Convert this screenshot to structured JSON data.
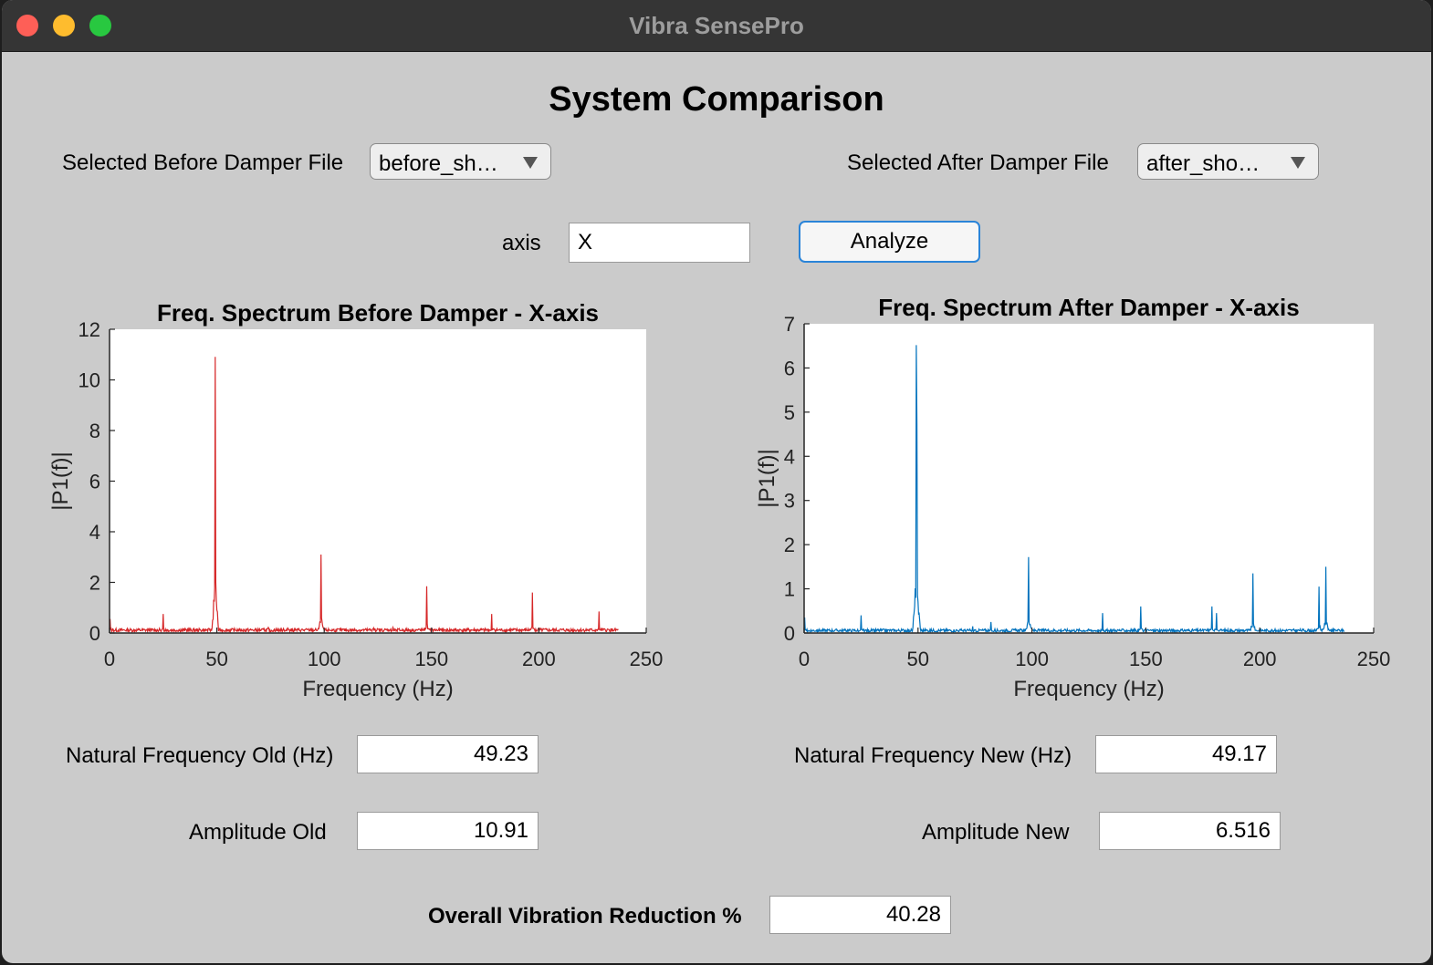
{
  "window": {
    "title": "Vibra SensePro"
  },
  "page": {
    "title": "System Comparison"
  },
  "before_file": {
    "label": "Selected Before Damper File",
    "value": "before_sh…"
  },
  "after_file": {
    "label": "Selected After Damper File",
    "value": "after_sho…"
  },
  "axis": {
    "label": "axis",
    "value": "X"
  },
  "analyze_button": "Analyze",
  "results": {
    "nat_freq_old_label": "Natural Frequency Old (Hz)",
    "nat_freq_old": "49.23",
    "nat_freq_new_label": "Natural Frequency New (Hz)",
    "nat_freq_new": "49.17",
    "amp_old_label": "Amplitude Old",
    "amp_old": "10.91",
    "amp_new_label": "Amplitude New",
    "amp_new": "6.516",
    "reduction_label": "Overall Vibration Reduction %",
    "reduction": "40.28"
  },
  "chart_data": [
    {
      "type": "line",
      "title": "Freq. Spectrum Before Damper - X-axis",
      "xlabel": "Frequency (Hz)",
      "ylabel": "|P1(f)|",
      "xlim": [
        0,
        250
      ],
      "ylim": [
        0,
        12
      ],
      "xticks": [
        0,
        50,
        100,
        150,
        200,
        250
      ],
      "yticks": [
        0,
        2,
        4,
        6,
        8,
        10,
        12
      ],
      "grid": false,
      "color": "#d62728",
      "data_max_x": 237,
      "baseline": 0.12,
      "peaks": [
        [
          0.3,
          0.55
        ],
        [
          25,
          0.75
        ],
        [
          49.2,
          10.91
        ],
        [
          74,
          0.22
        ],
        [
          83,
          0.2
        ],
        [
          98.5,
          3.1
        ],
        [
          123,
          0.2
        ],
        [
          132,
          0.22
        ],
        [
          147.8,
          1.85
        ],
        [
          178,
          0.75
        ],
        [
          197,
          1.6
        ],
        [
          228,
          0.85
        ]
      ]
    },
    {
      "type": "line",
      "title": "Freq. Spectrum After Damper - X-axis",
      "xlabel": "Frequency (Hz)",
      "ylabel": "|P1(f)|",
      "xlim": [
        0,
        250
      ],
      "ylim": [
        0,
        7
      ],
      "xticks": [
        0,
        50,
        100,
        150,
        200,
        250
      ],
      "yticks": [
        0,
        1,
        2,
        3,
        4,
        5,
        6,
        7
      ],
      "grid": false,
      "color": "#0072bd",
      "data_max_x": 237,
      "baseline": 0.06,
      "peaks": [
        [
          0.3,
          0.35
        ],
        [
          25,
          0.4
        ],
        [
          49.2,
          6.516
        ],
        [
          49.6,
          4.7
        ],
        [
          74,
          0.15
        ],
        [
          82,
          0.25
        ],
        [
          98.6,
          1.72
        ],
        [
          131,
          0.45
        ],
        [
          147.8,
          0.6
        ],
        [
          179,
          0.6
        ],
        [
          181,
          0.45
        ],
        [
          197,
          1.35
        ],
        [
          226,
          1.05
        ],
        [
          229,
          1.5
        ]
      ]
    }
  ]
}
